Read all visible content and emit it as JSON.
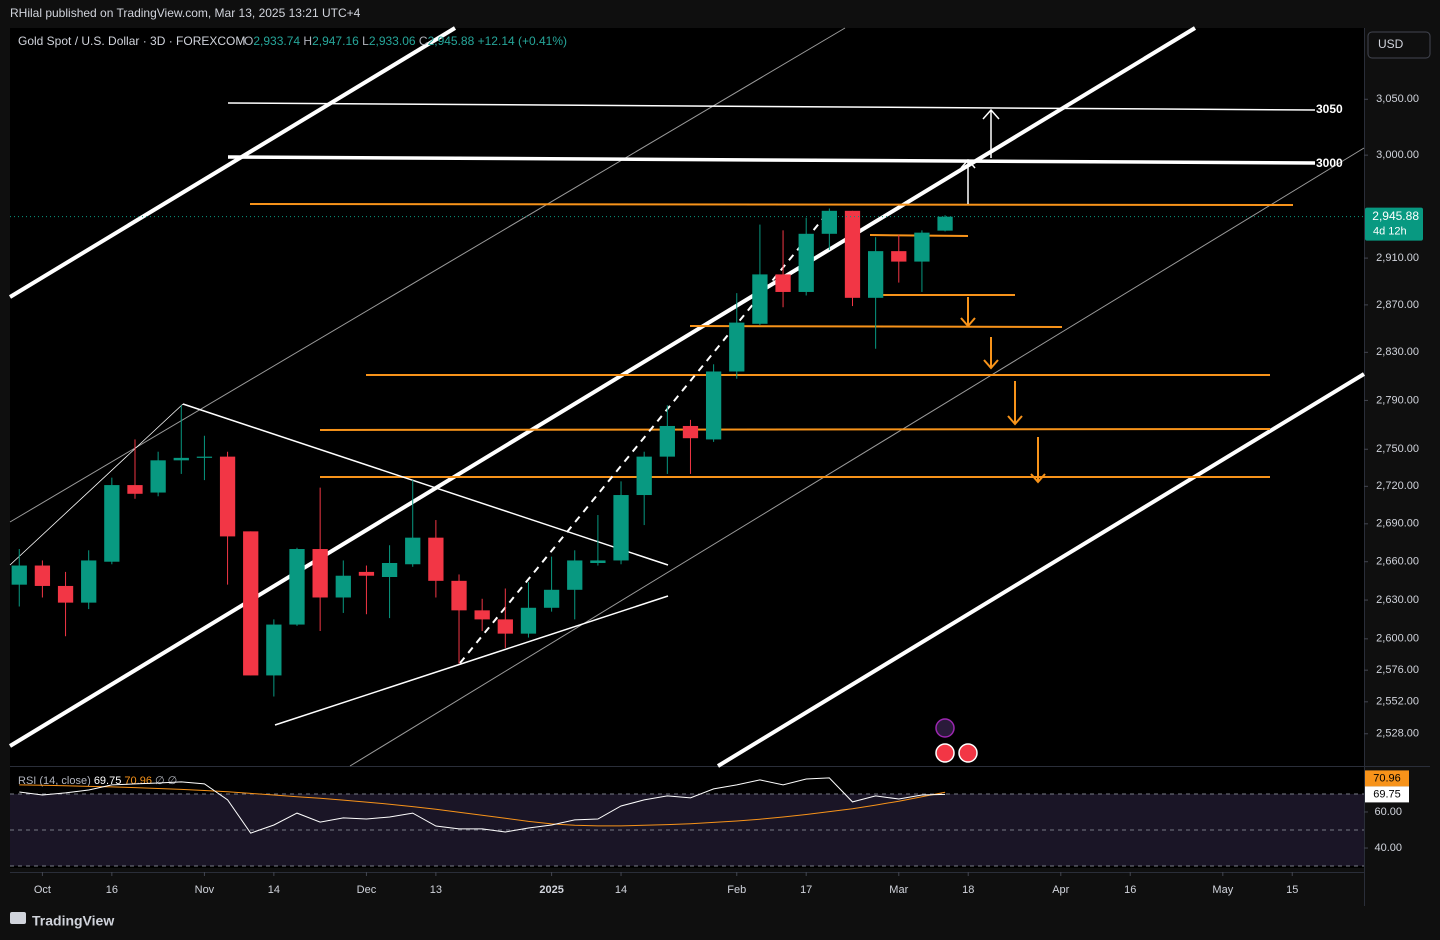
{
  "header": {
    "publisher": "RHilal published on TradingView.com, Mar 13, 2025 13:21 UTC+4"
  },
  "chart_data": {
    "type": "candlestick",
    "title": "Gold Spot / U.S. Dollar · 3D · FOREXCOM",
    "ohlc_legend": [
      "O",
      "2,933.74",
      "H",
      "2,947.16",
      "L",
      "2,933.06",
      "C",
      "2,945.88",
      "+12.14 (+0.41%)"
    ],
    "currency": "USD",
    "log_scale": true,
    "up_color": "#089981",
    "down_color": "#f23645",
    "open": [
      2642,
      2657,
      2641,
      2628,
      2660,
      2721,
      2715,
      2741,
      2743,
      2744,
      2684,
      2572,
      2611,
      2670,
      2632,
      2652,
      2648,
      2658,
      2679,
      2645,
      2622,
      2615,
      2604,
      2624,
      2638,
      2659,
      2661,
      2713,
      2744,
      2769,
      2758,
      2814,
      2854,
      2896,
      2881,
      2931,
      2951,
      2876,
      2916,
      2907,
      2933.74
    ],
    "high": [
      2670,
      2661,
      2652,
      2669,
      2727,
      2758,
      2748,
      2786,
      2761,
      2748,
      2684,
      2615,
      2671,
      2719,
      2661,
      2657,
      2673,
      2725,
      2693,
      2650,
      2631,
      2639,
      2644,
      2664,
      2669,
      2697,
      2724,
      2748,
      2786,
      2774,
      2820,
      2880,
      2939,
      2934,
      2945,
      2953,
      2951,
      2928,
      2930,
      2934,
      2947.16
    ],
    "low": [
      2625,
      2632,
      2602,
      2623,
      2658,
      2710,
      2712,
      2730,
      2725,
      2642,
      2572,
      2556,
      2610,
      2606,
      2620,
      2619,
      2616,
      2656,
      2632,
      2581,
      2606,
      2593,
      2601,
      2621,
      2615,
      2657,
      2658,
      2689,
      2730,
      2730,
      2756,
      2808,
      2853,
      2868,
      2878,
      2917,
      2869,
      2833,
      2889,
      2881,
      2933.06
    ],
    "close": [
      2657,
      2641,
      2628,
      2661,
      2721,
      2714,
      2741,
      2743,
      2744,
      2680,
      2572,
      2611,
      2670,
      2632,
      2649,
      2649,
      2659,
      2679,
      2645,
      2622,
      2615,
      2604,
      2624,
      2638,
      2661,
      2661,
      2713,
      2744,
      2769,
      2759,
      2814,
      2855,
      2896,
      2881,
      2931,
      2951,
      2876,
      2916,
      2907,
      2932,
      2945.88
    ],
    "xlim": [
      -0.4,
      58.1
    ],
    "xticks": [
      {
        "value": 1,
        "label": "Oct"
      },
      {
        "value": 4,
        "label": "16"
      },
      {
        "value": 8,
        "label": "Nov"
      },
      {
        "value": 11,
        "label": "14"
      },
      {
        "value": 15,
        "label": "Dec"
      },
      {
        "value": 18,
        "label": "13"
      },
      {
        "value": 23,
        "label": "2025"
      },
      {
        "value": 26,
        "label": "14"
      },
      {
        "value": 31,
        "label": "Feb"
      },
      {
        "value": 34,
        "label": "17"
      },
      {
        "value": 38,
        "label": "Mar"
      },
      {
        "value": 41,
        "label": "18"
      },
      {
        "value": 45,
        "label": "Apr"
      },
      {
        "value": 48,
        "label": "16"
      },
      {
        "value": 52,
        "label": "May"
      },
      {
        "value": 55,
        "label": "15"
      }
    ],
    "ylim": [
      2504,
      3115
    ],
    "yticks": [
      {
        "value": 3050,
        "label": "3,050.00"
      },
      {
        "value": 3000,
        "label": "3,000.00"
      },
      {
        "value": 2910,
        "label": "2,910.00"
      },
      {
        "value": 2870,
        "label": "2,870.00"
      },
      {
        "value": 2830,
        "label": "2,830.00"
      },
      {
        "value": 2790,
        "label": "2,790.00"
      },
      {
        "value": 2750,
        "label": "2,750.00"
      },
      {
        "value": 2720,
        "label": "2,720.00"
      },
      {
        "value": 2690,
        "label": "2,690.00"
      },
      {
        "value": 2660,
        "label": "2,660.00"
      },
      {
        "value": 2630,
        "label": "2,630.00"
      },
      {
        "value": 2600,
        "label": "2,600.00"
      },
      {
        "value": 2576,
        "label": "2,576.00"
      },
      {
        "value": 2552,
        "label": "2,552.00"
      },
      {
        "value": 2528,
        "label": "2,528.00"
      }
    ],
    "price_tag": {
      "value": 2945.88,
      "label": "2,945.88",
      "countdown": "4d 12h"
    },
    "annotations": [
      "3050",
      "3000"
    ],
    "rsi": {
      "name": "RSI (14, close)",
      "color": "#ffffff",
      "values": [
        71.1,
        69.4,
        70.6,
        72.2,
        75,
        75.6,
        76.1,
        76.7,
        75.6,
        66.7,
        48.3,
        52.8,
        59.4,
        54.4,
        56.7,
        56.1,
        57.2,
        59.4,
        52.2,
        50.6,
        50.6,
        48.9,
        51.1,
        52.8,
        55.6,
        56.1,
        63.3,
        66.7,
        68.9,
        67.8,
        72.8,
        75,
        77.8,
        75,
        78.3,
        78.9,
        65.6,
        68.9,
        67.2,
        69.4,
        69.75
      ],
      "value_label": "69.75",
      "ma": {
        "color": "#f7931a",
        "values": [
          75,
          74.8,
          74.5,
          74.2,
          73.9,
          73.5,
          73,
          72.5,
          71.9,
          71.2,
          70.3,
          69.4,
          68.5,
          67.6,
          66.6,
          65.5,
          64.3,
          63,
          61.5,
          59.9,
          58.2,
          56.5,
          54.8,
          53.4,
          52.6,
          52.3,
          52.3,
          52.6,
          53,
          53.5,
          54.2,
          55,
          56,
          57.2,
          58.6,
          60.2,
          61.8,
          63.8,
          66,
          68.5,
          70.96
        ],
        "value_label": "70.96"
      },
      "extra_legend": [
        "∅",
        "∅"
      ],
      "levels": [
        70,
        50,
        30
      ],
      "ylim": [
        26.7,
        84.4
      ],
      "yticks": [
        {
          "value": 60,
          "label": "60.00"
        },
        {
          "value": 40,
          "label": "40.00"
        }
      ]
    }
  },
  "footer": {
    "brand": "TradingView"
  }
}
